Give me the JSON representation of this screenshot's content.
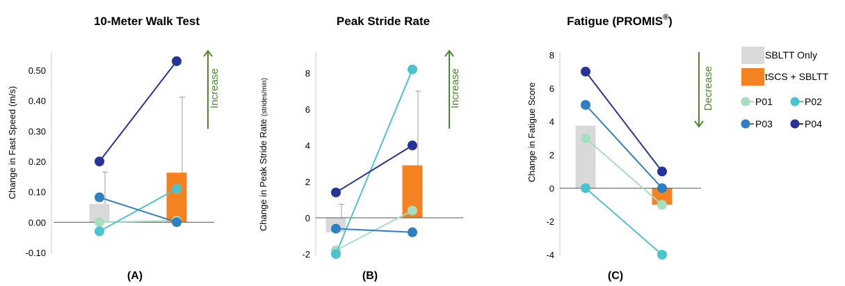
{
  "colors": {
    "sbltt_only": "#d9d9d9",
    "tscs_sbltt": "#f58220",
    "P01": "#a6dfbf",
    "P02": "#4cc4cf",
    "P03": "#2f7ec0",
    "P04": "#28339a",
    "arrow": "#4a8a2c",
    "error_bar": "#9e9e9e",
    "axis": "#333333"
  },
  "legend": {
    "bars": [
      {
        "key": "sbltt_only",
        "label": "SBLTT Only"
      },
      {
        "key": "tscs_sbltt",
        "label": "tSCS + SBLTT"
      }
    ],
    "participants": [
      {
        "key": "P01",
        "label": "P01"
      },
      {
        "key": "P02",
        "label": "P02"
      },
      {
        "key": "P03",
        "label": "P03"
      },
      {
        "key": "P04",
        "label": "P04"
      }
    ]
  },
  "chart_data": [
    {
      "type": "bar",
      "panel": "(A)",
      "title": "10-Meter Walk Test",
      "title_sup": "",
      "ylabel": "Change in Fast Speed (m/s)",
      "ylim": [
        -0.1,
        0.55
      ],
      "yticks": [
        -0.1,
        0.0,
        0.1,
        0.2,
        0.3,
        0.4,
        0.5
      ],
      "ytick_labels": [
        "-0.10",
        "0.00",
        "0.10",
        "0.20",
        "0.30",
        "0.40",
        "0.50"
      ],
      "bars": [
        {
          "series": "sbltt_only",
          "value": 0.06,
          "error_upper": 0.165
        },
        {
          "series": "tscs_sbltt",
          "value": 0.163,
          "error_upper": 0.412
        }
      ],
      "participants": [
        {
          "key": "P01",
          "values": [
            0.0,
            0.005
          ]
        },
        {
          "key": "P02",
          "values": [
            -0.03,
            0.11
          ]
        },
        {
          "key": "P03",
          "values": [
            0.082,
            0.0
          ]
        },
        {
          "key": "P04",
          "values": [
            0.2,
            0.53
          ]
        }
      ],
      "direction": {
        "label": "Increase",
        "dir": "up"
      }
    },
    {
      "type": "bar",
      "panel": "(B)",
      "title": "Peak Stride Rate",
      "title_sup": "",
      "ylabel": "Change in Peak Stride Rate",
      "ylabel_small": "(strides/min)",
      "ylim": [
        -2,
        9
      ],
      "yticks": [
        -2,
        0,
        2,
        4,
        6,
        8
      ],
      "ytick_labels": [
        "-2",
        "0",
        "2",
        "4",
        "6",
        "8"
      ],
      "bars": [
        {
          "series": "sbltt_only",
          "value": -0.8,
          "error_upper": 0.75
        },
        {
          "series": "tscs_sbltt",
          "value": 2.9,
          "error_upper": 7.0
        }
      ],
      "participants": [
        {
          "key": "P01",
          "values": [
            -1.8,
            0.4
          ]
        },
        {
          "key": "P02",
          "values": [
            -2.0,
            8.2
          ]
        },
        {
          "key": "P03",
          "values": [
            -0.6,
            -0.8
          ]
        },
        {
          "key": "P04",
          "values": [
            1.4,
            4.0
          ]
        }
      ],
      "direction": {
        "label": "Increase",
        "dir": "up"
      }
    },
    {
      "type": "bar",
      "panel": "(C)",
      "title": "Fatigue (PROMIS",
      "title_sup": "®",
      "title_tail": ")",
      "ylabel": "Change in Fatigue Score",
      "ylim": [
        -4,
        8
      ],
      "yticks": [
        -4,
        -2,
        0,
        2,
        4,
        6,
        8
      ],
      "ytick_labels": [
        "-4",
        "-2",
        "0",
        "2",
        "4",
        "6",
        "8"
      ],
      "bars": [
        {
          "series": "sbltt_only",
          "value": 3.75,
          "error_upper": null
        },
        {
          "series": "tscs_sbltt",
          "value": -1.0,
          "error_upper": null
        }
      ],
      "participants": [
        {
          "key": "P01",
          "values": [
            3.0,
            -1.0
          ]
        },
        {
          "key": "P02",
          "values": [
            0.0,
            -4.0
          ]
        },
        {
          "key": "P03",
          "values": [
            5.0,
            0.0
          ]
        },
        {
          "key": "P04",
          "values": [
            7.0,
            1.0
          ]
        }
      ],
      "direction": {
        "label": "Decrease",
        "dir": "down"
      }
    }
  ]
}
